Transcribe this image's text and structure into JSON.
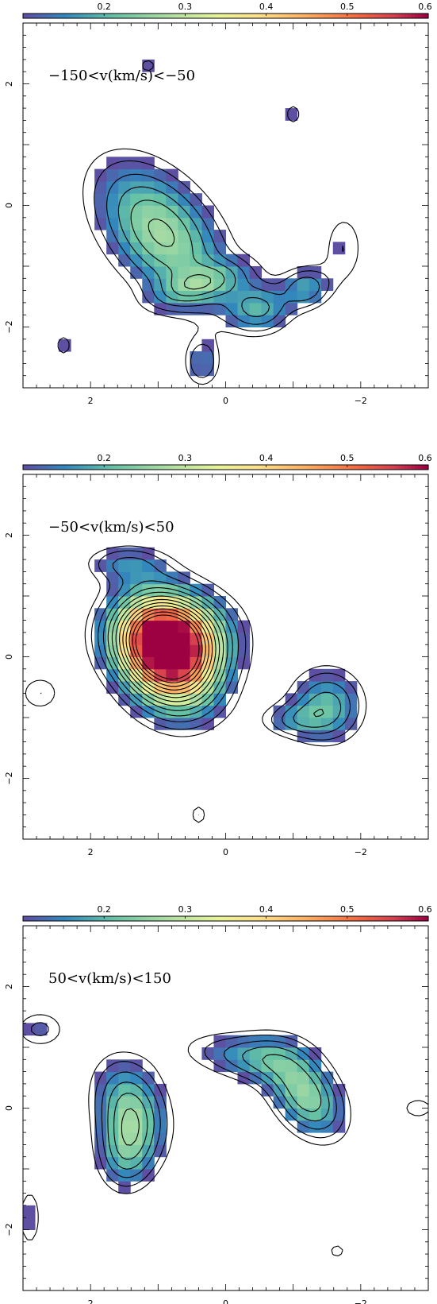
{
  "chart_data": [
    {
      "type": "heatmap",
      "title": "−150<v(km/s)<−50",
      "colorbar": {
        "ticks": [
          "0.2",
          "0.3",
          "0.4",
          "0.5",
          "0.6"
        ],
        "values": [
          0.2,
          0.3,
          0.4,
          0.5,
          0.6
        ],
        "range": [
          0.1,
          0.6
        ]
      },
      "xlim": [
        3,
        -3
      ],
      "ylim": [
        -3,
        3
      ],
      "xticks": {
        "values": [
          2,
          0,
          -2
        ],
        "labels": [
          "2",
          "0",
          "−2"
        ]
      },
      "yticks": {
        "values": [
          2,
          0,
          -2
        ],
        "labels": [
          "2",
          "0",
          "−2"
        ]
      },
      "blobs": [
        {
          "x": 0.95,
          "y": -0.45,
          "sx": 0.55,
          "sy": 0.95,
          "rot": -35,
          "peak": 0.27
        },
        {
          "x": -0.5,
          "y": -1.7,
          "sx": 0.35,
          "sy": 0.3,
          "rot": 0,
          "peak": 0.17
        },
        {
          "x": -1.2,
          "y": -1.35,
          "sx": 0.25,
          "sy": 0.25,
          "rot": 0,
          "peak": 0.16
        },
        {
          "x": 0.35,
          "y": -1.3,
          "sx": 0.55,
          "sy": 0.2,
          "rot": -20,
          "peak": 0.12
        },
        {
          "x": 0.35,
          "y": -2.6,
          "sx": 0.2,
          "sy": 0.3,
          "rot": 0,
          "peak": 0.13
        },
        {
          "x": -1.0,
          "y": 1.5,
          "sx": 0.1,
          "sy": 0.15,
          "rot": 0,
          "peak": 0.1
        },
        {
          "x": 2.4,
          "y": -2.3,
          "sx": 0.1,
          "sy": 0.15,
          "rot": 0,
          "peak": 0.1
        },
        {
          "x": 1.15,
          "y": 2.3,
          "sx": 0.1,
          "sy": 0.1,
          "rot": 0,
          "peak": 0.1
        },
        {
          "x": -1.75,
          "y": -0.7,
          "sx": 0.25,
          "sy": 0.5,
          "rot": 0,
          "peak": 0.1
        }
      ]
    },
    {
      "type": "heatmap",
      "title": "−50<v(km/s)<50",
      "colorbar": {
        "ticks": [
          "0.2",
          "0.3",
          "0.4",
          "0.5",
          "0.6"
        ],
        "values": [
          0.2,
          0.3,
          0.4,
          0.5,
          0.6
        ],
        "range": [
          0.1,
          0.6
        ]
      },
      "xlim": [
        3,
        -3
      ],
      "ylim": [
        -3,
        3
      ],
      "xticks": {
        "values": [
          2,
          0,
          -2
        ],
        "labels": [
          "2",
          "0",
          "−2"
        ]
      },
      "yticks": {
        "values": [
          2,
          0,
          -2
        ],
        "labels": [
          "2",
          "0",
          "−2"
        ]
      },
      "blobs": [
        {
          "x": 0.85,
          "y": 0.05,
          "sx": 0.5,
          "sy": 0.68,
          "rot": -20,
          "peak": 0.58
        },
        {
          "x": 0.5,
          "y": 0.4,
          "sx": 0.6,
          "sy": 0.5,
          "rot": 0,
          "peak": 0.14
        },
        {
          "x": 1.15,
          "y": 0.35,
          "sx": 0.55,
          "sy": 0.45,
          "rot": 0,
          "peak": 0.12
        },
        {
          "x": -1.5,
          "y": -0.8,
          "sx": 0.4,
          "sy": 0.45,
          "rot": 0,
          "peak": 0.2
        },
        {
          "x": -0.95,
          "y": -1.05,
          "sx": 0.35,
          "sy": 0.2,
          "rot": 0,
          "peak": 0.1
        },
        {
          "x": 1.5,
          "y": 1.55,
          "sx": 0.45,
          "sy": 0.22,
          "rot": 0,
          "peak": 0.12
        },
        {
          "x": 2.75,
          "y": -0.6,
          "sx": 0.25,
          "sy": 0.25,
          "rot": 0,
          "peak": 0.1
        },
        {
          "x": 0.4,
          "y": -2.6,
          "sx": 0.1,
          "sy": 0.15,
          "rot": 0,
          "peak": 0.1
        }
      ]
    },
    {
      "type": "heatmap",
      "title": "50<v(km/s)<150",
      "colorbar": {
        "ticks": [
          "0.2",
          "0.3",
          "0.4",
          "0.5",
          "0.6"
        ],
        "values": [
          0.2,
          0.3,
          0.4,
          0.5,
          0.6
        ],
        "range": [
          0.1,
          0.6
        ]
      },
      "xlim": [
        3,
        -3
      ],
      "ylim": [
        -3,
        3
      ],
      "xticks": {
        "values": [
          2,
          0,
          -2
        ],
        "labels": [
          "2",
          "0",
          "−2"
        ]
      },
      "yticks": {
        "values": [
          2,
          0,
          -2
        ],
        "labels": [
          "2",
          "0",
          "−2"
        ]
      },
      "blobs": [
        {
          "x": 1.4,
          "y": 0.0,
          "sx": 0.38,
          "sy": 0.6,
          "rot": -15,
          "peak": 0.23
        },
        {
          "x": 1.5,
          "y": -0.8,
          "sx": 0.3,
          "sy": 0.45,
          "rot": 0,
          "peak": 0.15
        },
        {
          "x": -1.2,
          "y": 0.2,
          "sx": 0.35,
          "sy": 0.55,
          "rot": -30,
          "peak": 0.25
        },
        {
          "x": 0.0,
          "y": 0.9,
          "sx": 0.6,
          "sy": 0.28,
          "rot": 10,
          "peak": 0.1
        },
        {
          "x": -0.6,
          "y": 0.85,
          "sx": 0.45,
          "sy": 0.3,
          "rot": 0,
          "peak": 0.1
        },
        {
          "x": 2.75,
          "y": 1.3,
          "sx": 0.3,
          "sy": 0.25,
          "rot": 0,
          "peak": 0.11
        },
        {
          "x": 2.9,
          "y": -1.8,
          "sx": 0.15,
          "sy": 0.45,
          "rot": 0,
          "peak": 0.1
        },
        {
          "x": -2.85,
          "y": 0.0,
          "sx": 0.2,
          "sy": 0.15,
          "rot": 0,
          "peak": 0.1
        },
        {
          "x": -1.65,
          "y": -2.35,
          "sx": 0.1,
          "sy": 0.1,
          "rot": 0,
          "peak": 0.1
        }
      ]
    }
  ]
}
